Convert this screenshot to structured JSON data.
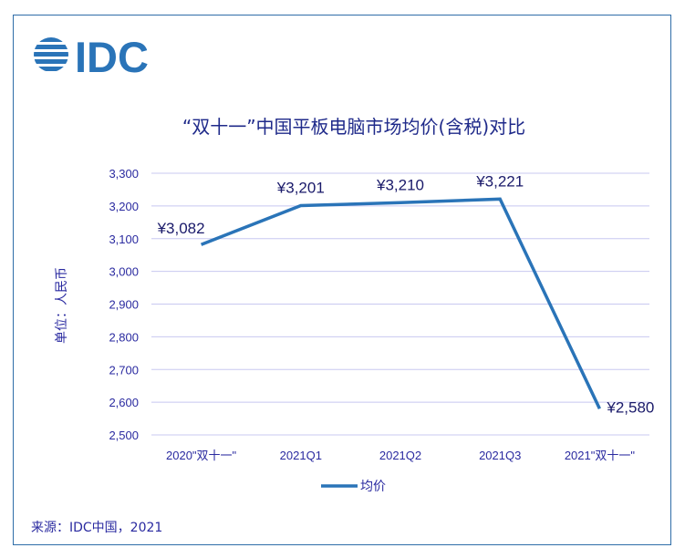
{
  "logo": {
    "text": "IDC",
    "color": "#2a74b8"
  },
  "source": "来源：IDC中国，2021",
  "chart_data": {
    "type": "line",
    "title": "“双十一”中国平板电脑市场均价(含税)对比",
    "ylabel": "单位：人民币",
    "xlabel": "",
    "categories": [
      "2020\"双十一\"",
      "2021Q1",
      "2021Q2",
      "2021Q3",
      "2021\"双十一\""
    ],
    "series": [
      {
        "name": "均价",
        "values": [
          3082,
          3201,
          3210,
          3221,
          2580
        ],
        "color": "#2a74b8"
      }
    ],
    "data_labels": [
      "¥3,082",
      "¥3,201",
      "¥3,210",
      "¥3,221",
      "¥2,580"
    ],
    "ylim": [
      2500,
      3300
    ],
    "yticks": [
      2500,
      2600,
      2700,
      2800,
      2900,
      3000,
      3100,
      3200,
      3300
    ],
    "ytick_labels": [
      "2,500",
      "2,600",
      "2,700",
      "2,800",
      "2,900",
      "3,000",
      "3,100",
      "3,200",
      "3,300"
    ],
    "grid": true,
    "legend_position": "bottom"
  }
}
